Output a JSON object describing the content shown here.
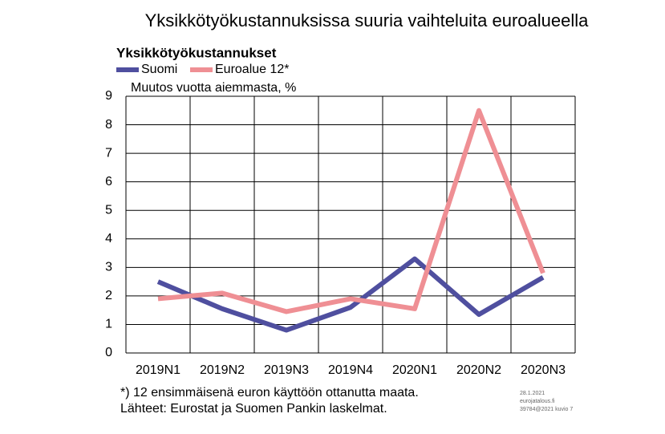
{
  "chart_data": {
    "type": "line",
    "title": "Yksikkötyökustannuksissa suuria vaihteluita euroalueella",
    "subtitle": "Yksikkötyökustannukset",
    "y_label": "Muutos vuotta aiemmasta, %",
    "categories": [
      "2019N1",
      "2019N2",
      "2019N3",
      "2019N4",
      "2020N1",
      "2020N2",
      "2020N3"
    ],
    "series": [
      {
        "name": "Suomi",
        "color": "#4f4f9f",
        "values": [
          2.5,
          1.55,
          0.8,
          1.6,
          3.3,
          1.35,
          2.65
        ]
      },
      {
        "name": "Euroalue 12*",
        "color": "#ef8f94",
        "values": [
          1.9,
          2.1,
          1.45,
          1.9,
          1.55,
          8.5,
          2.8
        ]
      }
    ],
    "ylim": [
      0,
      9
    ],
    "yticks": [
      0,
      1,
      2,
      3,
      4,
      5,
      6,
      7,
      8,
      9
    ],
    "grid": true,
    "footnotes": [
      "*) 12 ensimmäisenä euron käyttöön ottanutta maata.",
      "Lähteet: Eurostat ja Suomen Pankin laskelmat."
    ],
    "stamp": [
      "28.1.2021",
      "eurojatalous.fi",
      "39784@2021  kuvio 7"
    ]
  }
}
